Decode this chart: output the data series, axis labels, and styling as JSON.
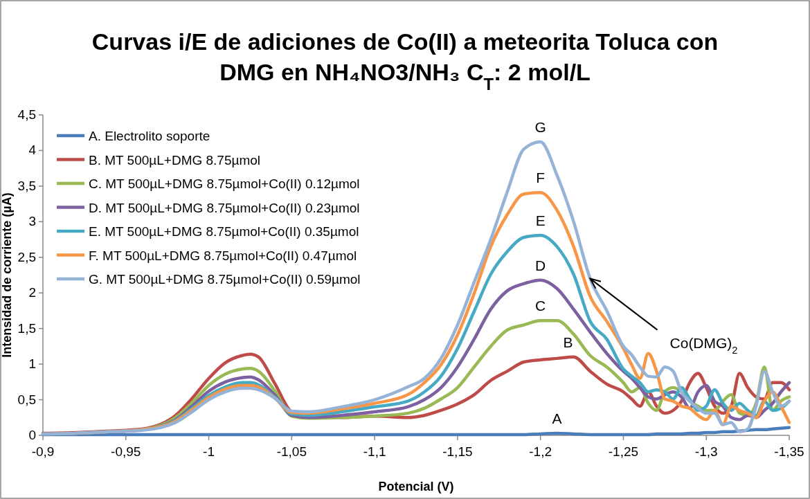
{
  "chart_data": {
    "type": "line",
    "title": "Curvas i/E de adiciones de Co(II) a meteorita Toluca con DMG en NH₄NO3/NH₃ C$_{T}$: 2 mol/L",
    "xlabel": "Potencial (V)",
    "ylabel": "Intensidad de corriente (µA)",
    "x": [
      -0.9,
      -0.92,
      -0.94,
      -0.96,
      -0.98,
      -0.99,
      -1.0,
      -1.01,
      -1.02,
      -1.025,
      -1.03,
      -1.04,
      -1.05,
      -1.06,
      -1.08,
      -1.1,
      -1.12,
      -1.13,
      -1.14,
      -1.15,
      -1.16,
      -1.17,
      -1.18,
      -1.19,
      -1.2,
      -1.21,
      -1.22,
      -1.23,
      -1.24,
      -1.25,
      -1.255,
      -1.26,
      -1.265,
      -1.27,
      -1.275,
      -1.28,
      -1.285,
      -1.29,
      -1.295,
      -1.3,
      -1.305,
      -1.31,
      -1.315,
      -1.32,
      -1.325,
      -1.33,
      -1.335,
      -1.34,
      -1.345,
      -1.35
    ],
    "series": [
      {
        "name": "A. Electrolito soporte",
        "color": "#4a7ebb",
        "values": [
          0.01,
          0.01,
          0.01,
          0.01,
          0.01,
          0.01,
          0.01,
          0.01,
          0.01,
          0.01,
          0.01,
          0.01,
          0.01,
          0.01,
          0.01,
          0.01,
          0.01,
          0.01,
          0.01,
          0.01,
          0.01,
          0.01,
          0.01,
          0.01,
          0.02,
          0.03,
          0.02,
          0.01,
          0.01,
          0.01,
          0.01,
          0.01,
          0.01,
          0.02,
          0.02,
          0.02,
          0.02,
          0.03,
          0.03,
          0.04,
          0.04,
          0.05,
          0.05,
          0.06,
          0.07,
          0.08,
          0.08,
          0.09,
          0.1,
          0.11
        ]
      },
      {
        "name": "B. MT 500µL+DMG 8.75µmol",
        "color": "#be4b48",
        "values": [
          0.03,
          0.04,
          0.06,
          0.09,
          0.28,
          0.52,
          0.8,
          1.02,
          1.12,
          1.14,
          1.1,
          0.72,
          0.33,
          0.27,
          0.25,
          0.27,
          0.25,
          0.28,
          0.35,
          0.44,
          0.57,
          0.77,
          0.9,
          1.03,
          1.06,
          1.08,
          1.1,
          0.9,
          0.72,
          0.61,
          0.51,
          0.41,
          0.61,
          0.41,
          0.31,
          0.35,
          0.48,
          0.74,
          0.87,
          0.67,
          0.41,
          0.31,
          0.41,
          0.87,
          0.67,
          0.54,
          0.51,
          0.74,
          0.74,
          0.64
        ]
      },
      {
        "name": "C. MT 500µL+DMG 8.75µmol+Co(II) 0.12µmol",
        "color": "#98b954",
        "values": [
          null,
          null,
          0.05,
          0.08,
          0.25,
          0.46,
          0.7,
          0.86,
          0.93,
          0.94,
          0.9,
          0.62,
          0.27,
          0.24,
          0.25,
          0.27,
          0.31,
          0.38,
          0.51,
          0.67,
          0.96,
          1.25,
          1.48,
          1.55,
          1.61,
          1.61,
          1.42,
          1.12,
          0.96,
          0.74,
          0.61,
          0.67,
          0.45,
          0.35,
          0.61,
          0.67,
          0.61,
          0.48,
          0.41,
          0.35,
          0.35,
          0.48,
          0.57,
          0.31,
          0.28,
          0.45,
          0.96,
          0.35,
          0.48,
          0.54
        ]
      },
      {
        "name": "D. MT 500µL+DMG 8.75µmol+Co(II) 0.23µmol",
        "color": "#7d60a0",
        "values": [
          0.02,
          0.03,
          0.05,
          0.08,
          0.22,
          0.41,
          0.62,
          0.75,
          0.81,
          0.82,
          0.78,
          0.56,
          0.28,
          0.25,
          0.28,
          0.33,
          0.4,
          0.5,
          0.67,
          0.96,
          1.35,
          1.77,
          2.03,
          2.13,
          2.18,
          2.06,
          1.77,
          1.45,
          1.15,
          0.9,
          0.8,
          0.67,
          0.54,
          0.51,
          0.57,
          0.61,
          0.54,
          0.38,
          0.61,
          0.7,
          0.48,
          0.41,
          0.25,
          0.22,
          0.28,
          0.25,
          0.35,
          0.45,
          0.61,
          0.74
        ]
      },
      {
        "name": "E. MT 500µL+DMG 8.75µmol+Co(II) 0.35µmol",
        "color": "#46aac5",
        "values": [
          0.02,
          0.03,
          0.05,
          0.08,
          0.21,
          0.38,
          0.56,
          0.68,
          0.74,
          0.74,
          0.71,
          0.53,
          0.3,
          0.28,
          0.33,
          0.4,
          0.48,
          0.61,
          0.83,
          1.22,
          1.74,
          2.26,
          2.58,
          2.78,
          2.81,
          2.65,
          2.26,
          1.6,
          1.35,
          0.93,
          0.83,
          0.74,
          0.61,
          0.64,
          0.61,
          0.51,
          0.67,
          0.51,
          0.35,
          0.41,
          0.64,
          0.45,
          0.35,
          0.45,
          0.35,
          0.28,
          0.48,
          0.35,
          0.38,
          0.48
        ]
      },
      {
        "name": "F. MT 500µL+DMG 8.75µmol+Co(II) 0.47µmol",
        "color": "#f79646",
        "values": [
          0.02,
          0.03,
          0.05,
          0.08,
          0.2,
          0.36,
          0.53,
          0.65,
          0.7,
          0.7,
          0.68,
          0.52,
          0.32,
          0.31,
          0.37,
          0.45,
          0.57,
          0.74,
          0.99,
          1.41,
          1.99,
          2.65,
          3.1,
          3.39,
          3.41,
          3.16,
          2.65,
          1.95,
          1.6,
          1.22,
          0.99,
          0.8,
          1.15,
          0.9,
          0.51,
          0.48,
          0.41,
          0.38,
          0.28,
          0.22,
          0.35,
          0.15,
          0.41,
          0.35,
          0.31,
          0.25,
          0.48,
          0.61,
          0.41,
          0.18
        ]
      },
      {
        "name": "G. MT 500µL+DMG 8.75µmol+Co(II) 0.59µmol",
        "color": "#95b3d7",
        "values": [
          0.02,
          0.03,
          0.05,
          0.07,
          0.18,
          0.33,
          0.5,
          0.61,
          0.66,
          0.66,
          0.64,
          0.52,
          0.34,
          0.33,
          0.4,
          0.5,
          0.68,
          0.8,
          1.08,
          1.55,
          2.15,
          2.75,
          3.42,
          4.02,
          4.12,
          3.65,
          3.0,
          2.2,
          1.75,
          1.25,
          1.13,
          0.96,
          0.83,
          0.82,
          0.96,
          0.9,
          0.61,
          0.48,
          0.38,
          0.31,
          0.31,
          0.15,
          0.18,
          0.05,
          0.09,
          0.41,
          0.9,
          0.61,
          0.41,
          0.48
        ]
      }
    ],
    "xlim": [
      -0.9,
      -1.35
    ],
    "xticks": [
      {
        "value": -0.9,
        "label": "-0,9"
      },
      {
        "value": -0.95,
        "label": "-0,95"
      },
      -1,
      {
        "value": -1.05,
        "label": "-1,05"
      },
      {
        "value": -1.1,
        "label": "-1,1"
      },
      {
        "value": -1.15,
        "label": "-1,15"
      },
      {
        "value": -1.2,
        "label": "-1,2"
      },
      {
        "value": -1.25,
        "label": "-1,25"
      },
      {
        "value": -1.3,
        "label": "-1,3"
      },
      {
        "value": -1.35,
        "label": "-1,35"
      }
    ],
    "ylim": [
      0,
      4.5
    ],
    "yticks": [
      0,
      {
        "value": 0.5,
        "label": "0,5"
      },
      1,
      {
        "value": 1.5,
        "label": "1,5"
      },
      2,
      {
        "value": 2.5,
        "label": "2,5"
      },
      3,
      {
        "value": 3.5,
        "label": "3,5"
      },
      4,
      {
        "value": 4.5,
        "label": "4,5"
      }
    ],
    "annotations": [
      {
        "text": "A",
        "x": -1.21,
        "y": 0.03
      },
      {
        "text": "B",
        "x": -1.22,
        "y": 1.1
      },
      {
        "text": "C",
        "x": -1.2,
        "y": 1.61
      },
      {
        "text": "D",
        "x": -1.2,
        "y": 2.18
      },
      {
        "text": "E",
        "x": -1.2,
        "y": 2.81
      },
      {
        "text": "F",
        "x": -1.2,
        "y": 3.41
      },
      {
        "text": "G",
        "x": -1.2,
        "y": 4.12
      },
      {
        "text": "Co(DMG)$_{2}$",
        "x": -1.23,
        "y": 2.2
      }
    ],
    "legend": "top left",
    "grid": false,
    "marker": "none",
    "line_style": "solid"
  }
}
